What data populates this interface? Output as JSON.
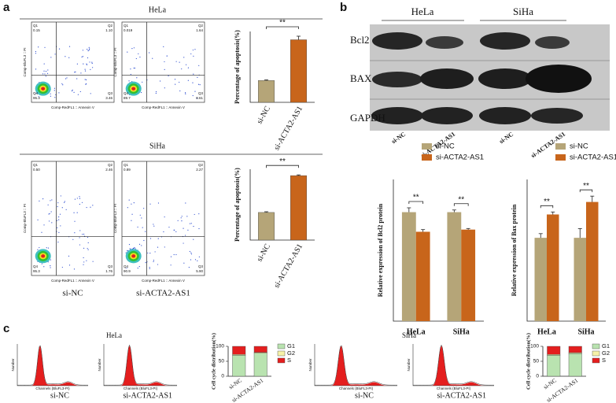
{
  "panel_a": {
    "label": "a",
    "hela_title": "HeLa",
    "siha_title": "SiHa"
  },
  "panel_b": {
    "label": "b",
    "blot": {
      "groups": [
        "HeLa",
        "SiHa"
      ],
      "rows": [
        "Bcl2",
        "BAX",
        "GAPDH"
      ],
      "lanes": [
        "si-NC",
        "si-ACTA2-AS1",
        "si-NC",
        "si-ACTA2-AS1"
      ]
    }
  },
  "panel_c": {
    "label": "c",
    "hela_title": "HeLa",
    "siha_title": "SiHa"
  },
  "flow_plots": [
    {
      "xlabel": "Comp-RedFL1 :: Annexin V",
      "ylabel": "Comp-BluFL3 :: PI",
      "quadrants": [
        {
          "name": "Q1",
          "value": "0.15"
        },
        {
          "name": "Q2",
          "value": "1.10"
        },
        {
          "name": "Q3",
          "value": "3.46"
        },
        {
          "name": "Q4",
          "value": "95.3"
        }
      ]
    },
    {
      "xlabel": "Comp-RedFL1 :: Annexin V",
      "ylabel": "Comp-BluFL3 :: PI",
      "quadrants": [
        {
          "name": "Q1",
          "value": "0.019"
        },
        {
          "name": "Q2",
          "value": "1.64"
        },
        {
          "name": "Q3",
          "value": "8.61"
        },
        {
          "name": "Q4",
          "value": "89.7"
        }
      ]
    },
    {
      "xlabel": "Comp-RedFL1 :: Annexin V",
      "ylabel": "Comp-BluFL3 :: PI",
      "label": "si-NC",
      "quadrants": [
        {
          "name": "Q1",
          "value": "0.50"
        },
        {
          "name": "Q2",
          "value": "2.46"
        },
        {
          "name": "Q3",
          "value": "1.76"
        },
        {
          "name": "Q4",
          "value": "95.3"
        }
      ]
    },
    {
      "xlabel": "Comp-RedFL1 :: Annexin V",
      "ylabel": "Comp-BluFL3 :: PI",
      "label": "si-ACTA2-AS1",
      "quadrants": [
        {
          "name": "Q1",
          "value": "0.89"
        },
        {
          "name": "Q2",
          "value": "2.27"
        },
        {
          "name": "Q3",
          "value": "5.90"
        },
        {
          "name": "Q4",
          "value": "90.9"
        }
      ]
    }
  ],
  "histograms": [
    {
      "label": "si-NC",
      "xlabel": "Channels (BluFL3-PI)",
      "ylabel": "Number"
    },
    {
      "label": "si-ACTA2-AS1",
      "xlabel": "Channels (BluFL3-PI)",
      "ylabel": "Number"
    },
    {
      "label": "si-NC",
      "xlabel": "Channels (BluFL3-PI)",
      "ylabel": "Number"
    },
    {
      "label": "si-ACTA2-AS1",
      "xlabel": "Channels (BluFL3-PI)",
      "ylabel": "Number"
    }
  ],
  "chart_data": [
    {
      "type": "bar",
      "ylabel": "Percentage of apoptosis(%)",
      "categories": [
        "si-NC",
        "si-ACTA2-AS1"
      ],
      "values": [
        3.7,
        10.6
      ],
      "errors": [
        0.1,
        0.6
      ],
      "colors": [
        "#b5a578",
        "#c8651b"
      ],
      "ylim": [
        0,
        12
      ],
      "annotations": [
        "**"
      ]
    },
    {
      "type": "bar",
      "ylabel": "Percentage of apoptosis(%)",
      "categories": [
        "si-NC",
        "si-ACTA2-AS1"
      ],
      "values": [
        3.9,
        9.1
      ],
      "errors": [
        0.1,
        0.1
      ],
      "colors": [
        "#b5a578",
        "#c8651b"
      ],
      "ylim": [
        0,
        10
      ],
      "annotations": [
        "**"
      ]
    },
    {
      "type": "bar",
      "ylabel": "Relative expression of Bcl2 protein",
      "categories": [
        "HeLa",
        "SiHa"
      ],
      "series": [
        {
          "name": "si-NC",
          "color": "#b5a578",
          "values": [
            1.0,
            1.0
          ],
          "errors": [
            0.04,
            0.02
          ]
        },
        {
          "name": "si-ACTA2-AS1",
          "color": "#c8651b",
          "values": [
            0.82,
            0.84
          ],
          "errors": [
            0.02,
            0.01
          ]
        }
      ],
      "ylim": [
        0,
        1.3
      ],
      "annotations": [
        "**",
        "**"
      ],
      "legend": "top"
    },
    {
      "type": "bar",
      "ylabel": "Relative expression of Bax protein",
      "categories": [
        "HeLa",
        "SiHa"
      ],
      "series": [
        {
          "name": "si-NC",
          "color": "#b5a578",
          "values": [
            1.0,
            1.0
          ],
          "errors": [
            0.05,
            0.11
          ]
        },
        {
          "name": "si-ACTA2-AS1",
          "color": "#c8651b",
          "values": [
            1.28,
            1.43
          ],
          "errors": [
            0.03,
            0.07
          ]
        }
      ],
      "ylim": [
        0,
        1.7
      ],
      "annotations": [
        "**",
        "**"
      ],
      "legend": "top"
    },
    {
      "type": "stacked",
      "ylabel": "Cell cycle distribution(%)",
      "categories": [
        "si-NC",
        "si-ACTA2-AS1"
      ],
      "series": [
        {
          "name": "G1",
          "color": "#b9e3b0",
          "values": [
            70,
            77
          ]
        },
        {
          "name": "G2",
          "color": "#f6f2a8",
          "values": [
            3,
            3
          ]
        },
        {
          "name": "S",
          "color": "#e41e1e",
          "values": [
            27,
            20
          ]
        }
      ],
      "ylim": [
        0,
        100
      ],
      "yticks": [
        0,
        50,
        100
      ],
      "legend": "right"
    },
    {
      "type": "stacked",
      "ylabel": "Cell cycle distribution(%)",
      "categories": [
        "si-NC",
        "si-ACTA2-AS1"
      ],
      "series": [
        {
          "name": "G1",
          "color": "#b9e3b0",
          "values": [
            70,
            76
          ]
        },
        {
          "name": "G2",
          "color": "#f6f2a8",
          "values": [
            3,
            3
          ]
        },
        {
          "name": "S",
          "color": "#e41e1e",
          "values": [
            27,
            21
          ]
        }
      ],
      "ylim": [
        0,
        100
      ],
      "yticks": [
        0,
        50,
        100
      ],
      "legend": "right"
    }
  ]
}
